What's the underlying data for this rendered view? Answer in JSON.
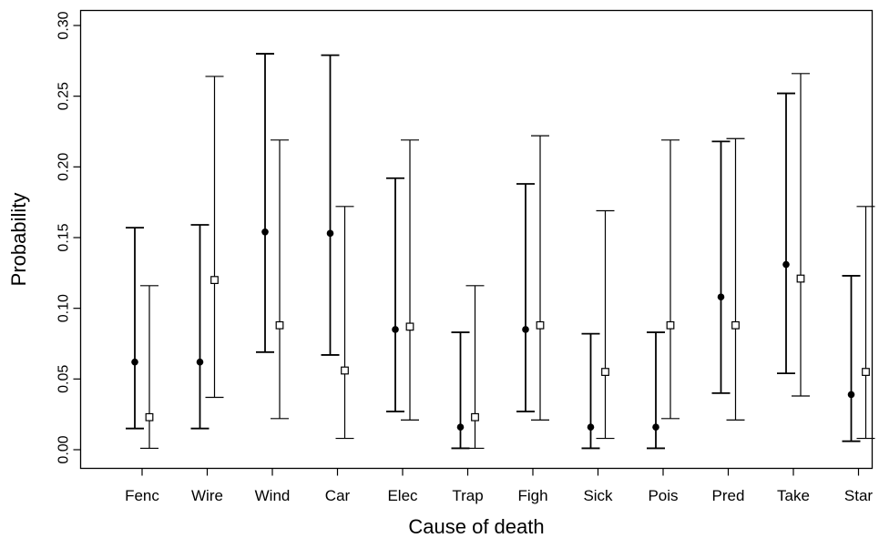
{
  "chart_data": {
    "type": "scatter",
    "title": "",
    "xlabel": "Cause of death",
    "ylabel": "Probability",
    "ylim": [
      0,
      0.3
    ],
    "yticks": [
      "0.00",
      "0.05",
      "0.10",
      "0.15",
      "0.20",
      "0.25",
      "0.30"
    ],
    "ytick_values": [
      0,
      0.05,
      0.1,
      0.15,
      0.2,
      0.25,
      0.3
    ],
    "categories": [
      "Fenc",
      "Wire",
      "Wind",
      "Car",
      "Elec",
      "Trap",
      "Figh",
      "Sick",
      "Pois",
      "Pred",
      "Take",
      "Star"
    ],
    "grid": false,
    "legend": "none",
    "series": [
      {
        "marker": "filled-circle",
        "color": "#000000",
        "values": [
          0.062,
          0.062,
          0.154,
          0.153,
          0.085,
          0.016,
          0.085,
          0.016,
          0.016,
          0.108,
          0.131,
          0.039
        ],
        "lower": [
          0.015,
          0.015,
          0.069,
          0.067,
          0.027,
          0.001,
          0.027,
          0.001,
          0.001,
          0.04,
          0.054,
          0.006
        ],
        "upper": [
          0.157,
          0.159,
          0.28,
          0.279,
          0.192,
          0.083,
          0.188,
          0.082,
          0.083,
          0.218,
          0.252,
          0.123
        ]
      },
      {
        "marker": "open-square",
        "color": "#000000",
        "values": [
          0.023,
          0.12,
          0.088,
          0.056,
          0.087,
          0.023,
          0.088,
          0.055,
          0.088,
          0.088,
          0.121,
          0.055
        ],
        "lower": [
          0.001,
          0.037,
          0.022,
          0.008,
          0.021,
          0.001,
          0.021,
          0.008,
          0.022,
          0.021,
          0.038,
          0.008
        ],
        "upper": [
          0.116,
          0.264,
          0.219,
          0.172,
          0.219,
          0.116,
          0.222,
          0.169,
          0.219,
          0.22,
          0.266,
          0.172
        ]
      }
    ]
  }
}
